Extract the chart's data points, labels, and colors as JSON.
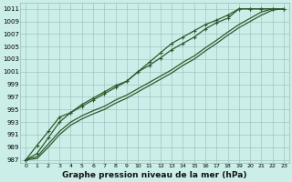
{
  "xlabel": "Graphe pression niveau de la mer (hPa)",
  "background_color": "#cceee8",
  "plot_bg_color": "#cceee8",
  "grid_color": "#99bbbb",
  "line_color": "#2d5a2d",
  "xlim": [
    -0.5,
    23.5
  ],
  "ylim": [
    986.5,
    1012
  ],
  "yticks": [
    987,
    989,
    991,
    993,
    995,
    997,
    999,
    1001,
    1003,
    1005,
    1007,
    1009,
    1011
  ],
  "xticks": [
    0,
    1,
    2,
    3,
    4,
    5,
    6,
    7,
    8,
    9,
    10,
    11,
    12,
    13,
    14,
    15,
    16,
    17,
    18,
    19,
    20,
    21,
    22,
    23
  ],
  "series": [
    [
      987.0,
      989.3,
      991.5,
      993.8,
      994.5,
      995.8,
      996.8,
      997.8,
      998.8,
      999.5,
      1001.0,
      1002.0,
      1003.2,
      1004.5,
      1005.5,
      1006.5,
      1007.8,
      1008.8,
      1009.5,
      1011.0,
      1011.0,
      1011.0,
      1011.0,
      1011.0
    ],
    [
      987.0,
      988.0,
      990.5,
      993.0,
      994.5,
      995.5,
      996.5,
      997.5,
      998.5,
      999.5,
      1001.0,
      1002.5,
      1004.0,
      1005.5,
      1006.5,
      1007.5,
      1008.5,
      1009.2,
      1010.0,
      1011.0,
      1011.0,
      1011.0,
      1011.0,
      1011.0
    ],
    [
      987.0,
      987.5,
      989.5,
      991.5,
      993.0,
      994.0,
      994.8,
      995.5,
      996.5,
      997.3,
      998.3,
      999.3,
      1000.3,
      1001.3,
      1002.5,
      1003.5,
      1004.8,
      1006.0,
      1007.3,
      1008.5,
      1009.5,
      1010.5,
      1011.0,
      1011.0
    ],
    [
      987.0,
      987.2,
      989.0,
      991.0,
      992.5,
      993.5,
      994.3,
      995.0,
      996.0,
      996.8,
      997.8,
      998.8,
      999.8,
      1000.8,
      1002.0,
      1003.0,
      1004.3,
      1005.5,
      1006.8,
      1008.0,
      1009.0,
      1010.0,
      1010.8,
      1011.0
    ]
  ],
  "series_markers": [
    true,
    true,
    false,
    false
  ],
  "marker": "+",
  "markersize": 3.5,
  "linewidth": 0.9,
  "xlabel_fontsize": 6.5,
  "tick_fontsize": 5.0,
  "tick_fontsize_x": 4.5
}
